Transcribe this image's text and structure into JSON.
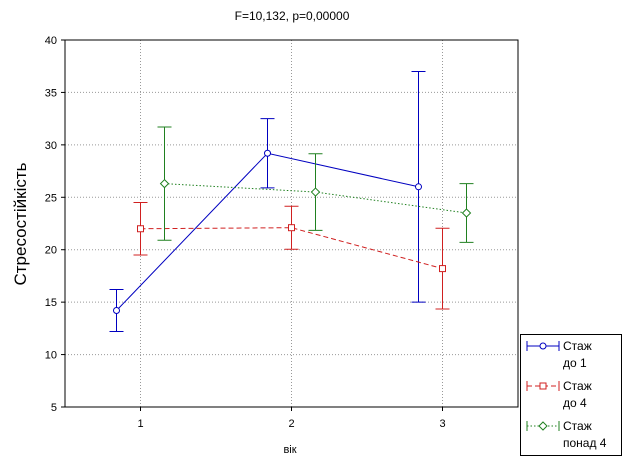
{
  "chart_data": {
    "type": "line",
    "title": "F=10,132, p=0,00000",
    "x_label": "вік",
    "y_label": "Стресостійкість",
    "x": [
      1,
      2,
      3
    ],
    "xlim": [
      0.5,
      3.5
    ],
    "xticks": [
      1,
      2,
      3
    ],
    "ylim": [
      5,
      40
    ],
    "yticks": [
      5,
      10,
      15,
      20,
      25,
      30,
      35,
      40
    ],
    "grid": true,
    "series": [
      {
        "name": "Стаж до 1",
        "color": "#0000c0",
        "dash": "solid",
        "marker": "circle",
        "values": [
          14.2,
          29.2,
          26.0
        ],
        "errors": [
          2.0,
          3.3,
          11.0
        ]
      },
      {
        "name": "Стаж до 4",
        "color": "#d02020",
        "dash": "dashed",
        "marker": "square",
        "values": [
          22.0,
          22.1,
          18.2
        ],
        "errors": [
          2.5,
          2.05,
          3.85
        ]
      },
      {
        "name": "Стаж понад 4",
        "color": "#208020",
        "dash": "dotted",
        "marker": "diamond",
        "values": [
          26.3,
          25.5,
          23.5
        ],
        "errors": [
          5.4,
          3.65,
          2.8
        ]
      }
    ]
  }
}
